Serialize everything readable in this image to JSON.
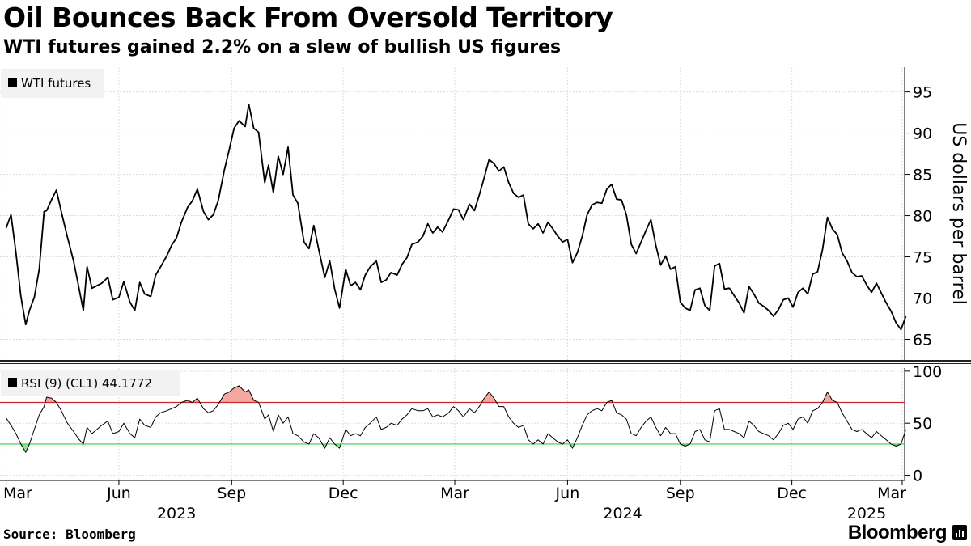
{
  "header": {
    "title": "Oil Bounces Back From Oversold Territory",
    "subtitle": "WTI futures gained 2.2% on a slew of bullish US figures"
  },
  "footer": {
    "source": "Source: Bloomberg",
    "brand": "Bloomberg"
  },
  "chart_data": [
    {
      "type": "line",
      "legend": "WTI futures",
      "ylabel": "US dollars per barrel",
      "ylim": [
        62.5,
        98
      ],
      "yticks": [
        65,
        70,
        75,
        80,
        85,
        90,
        95
      ],
      "grid": true,
      "legend_placement": "top-left",
      "color": "#000000",
      "x": [
        "2023-03-01",
        "2023-03-05",
        "2023-03-09",
        "2023-03-13",
        "2023-03-17",
        "2023-03-20",
        "2023-03-24",
        "2023-03-28",
        "2023-04-01",
        "2023-04-03",
        "2023-04-07",
        "2023-04-11",
        "2023-04-15",
        "2023-04-20",
        "2023-04-25",
        "2023-04-29",
        "2023-05-03",
        "2023-05-06",
        "2023-05-10",
        "2023-05-14",
        "2023-05-18",
        "2023-05-23",
        "2023-05-27",
        "2023-06-01",
        "2023-06-05",
        "2023-06-10",
        "2023-06-14",
        "2023-06-18",
        "2023-06-22",
        "2023-06-27",
        "2023-07-01",
        "2023-07-05",
        "2023-07-10",
        "2023-07-14",
        "2023-07-18",
        "2023-07-22",
        "2023-07-27",
        "2023-07-31",
        "2023-08-04",
        "2023-08-09",
        "2023-08-13",
        "2023-08-17",
        "2023-08-21",
        "2023-08-26",
        "2023-08-30",
        "2023-09-03",
        "2023-09-07",
        "2023-09-12",
        "2023-09-15",
        "2023-09-19",
        "2023-09-23",
        "2023-09-28",
        "2023-10-01",
        "2023-10-05",
        "2023-10-09",
        "2023-10-13",
        "2023-10-17",
        "2023-10-21",
        "2023-10-25",
        "2023-10-30",
        "2023-11-03",
        "2023-11-07",
        "2023-11-11",
        "2023-11-16",
        "2023-11-20",
        "2023-11-24",
        "2023-11-28",
        "2023-12-03",
        "2023-12-07",
        "2023-12-11",
        "2023-12-15",
        "2023-12-19",
        "2023-12-23",
        "2023-12-28",
        "2024-01-01",
        "2024-01-05",
        "2024-01-09",
        "2024-01-14",
        "2024-01-18",
        "2024-01-22",
        "2024-01-26",
        "2024-01-31",
        "2024-02-04",
        "2024-02-08",
        "2024-02-12",
        "2024-02-16",
        "2024-02-20",
        "2024-02-25",
        "2024-02-29",
        "2024-03-04",
        "2024-03-08",
        "2024-03-13",
        "2024-03-17",
        "2024-03-21",
        "2024-03-25",
        "2024-03-29",
        "2024-04-02",
        "2024-04-06",
        "2024-04-10",
        "2024-04-14",
        "2024-04-18",
        "2024-04-22",
        "2024-04-26",
        "2024-04-30",
        "2024-05-04",
        "2024-05-08",
        "2024-05-12",
        "2024-05-16",
        "2024-05-20",
        "2024-05-24",
        "2024-05-28",
        "2024-06-01",
        "2024-06-05",
        "2024-06-09",
        "2024-06-13",
        "2024-06-17",
        "2024-06-21",
        "2024-06-25",
        "2024-06-29",
        "2024-07-03",
        "2024-07-07",
        "2024-07-11",
        "2024-07-15",
        "2024-07-19",
        "2024-07-23",
        "2024-07-27",
        "2024-07-31",
        "2024-08-04",
        "2024-08-08",
        "2024-08-12",
        "2024-08-16",
        "2024-08-20",
        "2024-08-24",
        "2024-08-28",
        "2024-09-01",
        "2024-09-05",
        "2024-09-09",
        "2024-09-13",
        "2024-09-17",
        "2024-09-21",
        "2024-09-25",
        "2024-09-29",
        "2024-10-03",
        "2024-10-07",
        "2024-10-11",
        "2024-10-15",
        "2024-10-19",
        "2024-10-23",
        "2024-10-27",
        "2024-10-31",
        "2024-11-04",
        "2024-11-08",
        "2024-11-12",
        "2024-11-16",
        "2024-11-20",
        "2024-11-24",
        "2024-11-28",
        "2024-12-02",
        "2024-12-06",
        "2024-12-10",
        "2024-12-14",
        "2024-12-18",
        "2024-12-22",
        "2024-12-26",
        "2024-12-30",
        "2025-01-03",
        "2025-01-07",
        "2025-01-11",
        "2025-01-15",
        "2025-01-19",
        "2025-01-23",
        "2025-01-27",
        "2025-01-31",
        "2025-02-04",
        "2025-02-08",
        "2025-02-12",
        "2025-02-16",
        "2025-02-20",
        "2025-02-24",
        "2025-02-28",
        "2025-03-04"
      ],
      "y": [
        78.5,
        80.1,
        75.5,
        70.2,
        66.8,
        68.5,
        70.1,
        73.5,
        80.5,
        80.6,
        81.9,
        83.1,
        80.5,
        77.4,
        74.5,
        71.5,
        68.5,
        73.8,
        71.2,
        71.5,
        71.8,
        72.5,
        69.8,
        70.1,
        72.0,
        69.5,
        68.5,
        71.9,
        70.5,
        70.2,
        72.8,
        73.8,
        75.1,
        76.4,
        77.3,
        79.2,
        81.0,
        81.8,
        83.2,
        80.5,
        79.5,
        80.1,
        81.8,
        85.5,
        88.0,
        90.6,
        91.5,
        90.8,
        93.5,
        90.6,
        90.1,
        84.0,
        86.1,
        82.8,
        87.2,
        85.0,
        88.3,
        82.5,
        81.5,
        76.8,
        76.0,
        78.8,
        75.9,
        72.5,
        74.5,
        71.1,
        68.8,
        73.5,
        71.5,
        71.9,
        71.0,
        72.8,
        73.8,
        74.5,
        71.9,
        72.2,
        73.1,
        72.8,
        74.1,
        74.9,
        76.5,
        76.8,
        77.5,
        79.0,
        77.9,
        78.6,
        78.0,
        79.5,
        80.8,
        80.7,
        79.5,
        81.4,
        80.6,
        82.5,
        84.6,
        86.8,
        86.3,
        85.4,
        85.9,
        84.0,
        82.7,
        82.2,
        82.5,
        79.0,
        78.4,
        79.0,
        77.9,
        79.2,
        78.4,
        77.5,
        76.8,
        77.1,
        74.3,
        75.5,
        77.5,
        80.1,
        81.3,
        81.6,
        81.5,
        83.2,
        83.8,
        82.0,
        81.9,
        80.1,
        76.5,
        75.4,
        76.8,
        78.2,
        79.5,
        76.4,
        74.0,
        75.1,
        73.5,
        73.8,
        69.5,
        68.8,
        68.5,
        71.0,
        71.2,
        69.1,
        68.5,
        73.9,
        74.2,
        71.1,
        71.2,
        70.3,
        69.4,
        68.2,
        71.4,
        70.5,
        69.4,
        69.0,
        68.5,
        67.8,
        68.6,
        69.8,
        70.0,
        68.9,
        70.7,
        71.2,
        70.5,
        72.9,
        73.2,
        75.9,
        79.8,
        78.4,
        77.7,
        75.5,
        74.5,
        73.1,
        72.6,
        72.7,
        71.6,
        70.7,
        71.8,
        70.6,
        69.4,
        68.4,
        67.0,
        66.2,
        67.8
      ]
    },
    {
      "type": "line",
      "legend": "RSI (9) (CL1) 44.1772",
      "ylim": [
        -5,
        103
      ],
      "yticks": [
        0,
        50,
        100
      ],
      "upper_band": 70,
      "lower_band": 30,
      "color": "#000000",
      "band_colors": {
        "upper": "#cc2a2a",
        "lower": "#2fd44a",
        "overbought_fill": "#f4a7a0",
        "oversold_fill": "#8ee28e"
      },
      "x": [
        "2023-03-01",
        "2023-03-05",
        "2023-03-09",
        "2023-03-13",
        "2023-03-17",
        "2023-03-20",
        "2023-03-24",
        "2023-03-28",
        "2023-04-01",
        "2023-04-03",
        "2023-04-07",
        "2023-04-11",
        "2023-04-15",
        "2023-04-20",
        "2023-04-25",
        "2023-04-29",
        "2023-05-03",
        "2023-05-06",
        "2023-05-10",
        "2023-05-14",
        "2023-05-18",
        "2023-05-23",
        "2023-05-27",
        "2023-06-01",
        "2023-06-05",
        "2023-06-10",
        "2023-06-14",
        "2023-06-18",
        "2023-06-22",
        "2023-06-27",
        "2023-07-01",
        "2023-07-05",
        "2023-07-10",
        "2023-07-14",
        "2023-07-18",
        "2023-07-22",
        "2023-07-27",
        "2023-07-31",
        "2023-08-04",
        "2023-08-09",
        "2023-08-13",
        "2023-08-17",
        "2023-08-21",
        "2023-08-26",
        "2023-08-30",
        "2023-09-03",
        "2023-09-07",
        "2023-09-12",
        "2023-09-15",
        "2023-09-19",
        "2023-09-23",
        "2023-09-28",
        "2023-10-01",
        "2023-10-05",
        "2023-10-09",
        "2023-10-13",
        "2023-10-17",
        "2023-10-21",
        "2023-10-25",
        "2023-10-30",
        "2023-11-03",
        "2023-11-07",
        "2023-11-11",
        "2023-11-16",
        "2023-11-20",
        "2023-11-24",
        "2023-11-28",
        "2023-12-03",
        "2023-12-07",
        "2023-12-11",
        "2023-12-15",
        "2023-12-19",
        "2023-12-23",
        "2023-12-28",
        "2024-01-01",
        "2024-01-05",
        "2024-01-09",
        "2024-01-14",
        "2024-01-18",
        "2024-01-22",
        "2024-01-26",
        "2024-01-31",
        "2024-02-04",
        "2024-02-08",
        "2024-02-12",
        "2024-02-16",
        "2024-02-20",
        "2024-02-25",
        "2024-02-29",
        "2024-03-04",
        "2024-03-08",
        "2024-03-13",
        "2024-03-17",
        "2024-03-21",
        "2024-03-25",
        "2024-03-29",
        "2024-04-02",
        "2024-04-06",
        "2024-04-10",
        "2024-04-14",
        "2024-04-18",
        "2024-04-22",
        "2024-04-26",
        "2024-04-30",
        "2024-05-04",
        "2024-05-08",
        "2024-05-12",
        "2024-05-16",
        "2024-05-20",
        "2024-05-24",
        "2024-05-28",
        "2024-06-01",
        "2024-06-05",
        "2024-06-09",
        "2024-06-13",
        "2024-06-17",
        "2024-06-21",
        "2024-06-25",
        "2024-06-29",
        "2024-07-03",
        "2024-07-07",
        "2024-07-11",
        "2024-07-15",
        "2024-07-19",
        "2024-07-23",
        "2024-07-27",
        "2024-07-31",
        "2024-08-04",
        "2024-08-08",
        "2024-08-12",
        "2024-08-16",
        "2024-08-20",
        "2024-08-24",
        "2024-08-28",
        "2024-09-01",
        "2024-09-05",
        "2024-09-09",
        "2024-09-13",
        "2024-09-17",
        "2024-09-21",
        "2024-09-25",
        "2024-09-29",
        "2024-10-03",
        "2024-10-07",
        "2024-10-11",
        "2024-10-15",
        "2024-10-19",
        "2024-10-23",
        "2024-10-27",
        "2024-10-31",
        "2024-11-04",
        "2024-11-08",
        "2024-11-12",
        "2024-11-16",
        "2024-11-20",
        "2024-11-24",
        "2024-11-28",
        "2024-12-02",
        "2024-12-06",
        "2024-12-10",
        "2024-12-14",
        "2024-12-18",
        "2024-12-22",
        "2024-12-26",
        "2024-12-30",
        "2025-01-03",
        "2025-01-07",
        "2025-01-11",
        "2025-01-15",
        "2025-01-19",
        "2025-01-23",
        "2025-01-27",
        "2025-01-31",
        "2025-02-04",
        "2025-02-08",
        "2025-02-12",
        "2025-02-16",
        "2025-02-20",
        "2025-02-24",
        "2025-02-28",
        "2025-03-04"
      ],
      "y": [
        55,
        48,
        40,
        30,
        22,
        30,
        44,
        58,
        66,
        75,
        74,
        70,
        62,
        50,
        42,
        35,
        30,
        46,
        40,
        44,
        48,
        52,
        40,
        42,
        50,
        40,
        36,
        54,
        48,
        46,
        56,
        60,
        62,
        64,
        66,
        70,
        72,
        70,
        74,
        64,
        60,
        62,
        68,
        78,
        80,
        84,
        86,
        80,
        82,
        72,
        70,
        54,
        58,
        42,
        58,
        50,
        56,
        40,
        38,
        32,
        30,
        40,
        36,
        26,
        36,
        30,
        26,
        44,
        38,
        40,
        38,
        46,
        50,
        56,
        44,
        46,
        50,
        48,
        54,
        58,
        64,
        62,
        62,
        64,
        56,
        58,
        56,
        60,
        66,
        62,
        56,
        64,
        60,
        66,
        74,
        80,
        74,
        66,
        66,
        56,
        50,
        46,
        48,
        34,
        30,
        34,
        30,
        40,
        36,
        32,
        30,
        34,
        26,
        36,
        48,
        58,
        62,
        64,
        62,
        70,
        72,
        60,
        58,
        54,
        40,
        38,
        46,
        52,
        56,
        46,
        38,
        46,
        40,
        40,
        30,
        28,
        30,
        42,
        44,
        34,
        32,
        62,
        64,
        44,
        44,
        42,
        40,
        36,
        52,
        48,
        42,
        40,
        38,
        34,
        40,
        48,
        50,
        44,
        54,
        56,
        50,
        62,
        64,
        70,
        80,
        72,
        70,
        60,
        52,
        44,
        42,
        44,
        40,
        36,
        42,
        38,
        34,
        30,
        28,
        30,
        44
      ]
    }
  ],
  "x_axis": {
    "month_labels": [
      "Mar",
      "Jun",
      "Sep",
      "Dec",
      "Mar",
      "Jun",
      "Sep",
      "Dec",
      "Mar"
    ],
    "month_dates": [
      "2023-03-01",
      "2023-06-01",
      "2023-09-01",
      "2023-12-01",
      "2024-03-01",
      "2024-06-01",
      "2024-09-01",
      "2024-12-01",
      "2025-03-01"
    ],
    "year_labels": [
      "2023",
      "2024",
      "2025"
    ],
    "year_label_dates": [
      "2023-07-18",
      "2024-07-16",
      "2025-01-31"
    ],
    "range": [
      "2023-02-24",
      "2025-03-03"
    ]
  }
}
